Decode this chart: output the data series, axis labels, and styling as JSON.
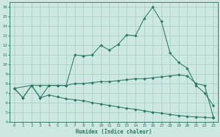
{
  "xlabel": "Humidex (Indice chaleur)",
  "bg_color": "#cce8e0",
  "grid_color": "#aad0c8",
  "line_color": "#2a7868",
  "xlim": [
    -0.5,
    23.5
  ],
  "ylim": [
    4,
    16.5
  ],
  "xticks": [
    0,
    1,
    2,
    3,
    4,
    5,
    6,
    7,
    8,
    9,
    10,
    11,
    12,
    13,
    14,
    15,
    16,
    17,
    18,
    19,
    20,
    21,
    22,
    23
  ],
  "yticks": [
    4,
    5,
    6,
    7,
    8,
    9,
    10,
    11,
    12,
    13,
    14,
    15,
    16
  ],
  "line1_x": [
    0,
    1,
    2,
    3,
    4,
    5,
    6,
    7,
    8,
    9,
    10,
    11,
    12,
    13,
    14,
    15,
    16,
    17,
    18,
    19,
    20,
    21,
    22,
    23
  ],
  "line1_y": [
    7.5,
    6.5,
    7.8,
    6.5,
    7.8,
    7.8,
    7.8,
    11.0,
    10.9,
    11.0,
    12.0,
    11.5,
    12.1,
    13.1,
    13.0,
    14.8,
    16.0,
    14.5,
    11.2,
    10.2,
    9.6,
    7.8,
    7.0,
    5.7
  ],
  "line2_x": [
    0,
    2,
    3,
    4,
    5,
    6,
    7,
    8,
    9,
    10,
    11,
    12,
    13,
    14,
    15,
    16,
    17,
    18,
    19,
    20,
    21,
    22,
    23
  ],
  "line2_y": [
    7.5,
    7.8,
    7.8,
    7.8,
    7.8,
    7.8,
    8.0,
    8.0,
    8.1,
    8.2,
    8.2,
    8.3,
    8.4,
    8.5,
    8.5,
    8.6,
    8.7,
    8.8,
    8.9,
    8.8,
    8.0,
    7.8,
    4.5
  ],
  "line3_x": [
    0,
    1,
    2,
    3,
    4,
    5,
    6,
    7,
    8,
    9,
    10,
    11,
    12,
    13,
    14,
    15,
    16,
    17,
    18,
    19,
    20,
    21,
    22,
    23
  ],
  "line3_y": [
    7.5,
    6.5,
    7.8,
    6.5,
    6.8,
    6.6,
    6.4,
    6.3,
    6.2,
    6.0,
    5.85,
    5.7,
    5.55,
    5.4,
    5.3,
    5.15,
    5.0,
    4.9,
    4.75,
    4.65,
    4.55,
    4.5,
    4.45,
    4.4
  ]
}
